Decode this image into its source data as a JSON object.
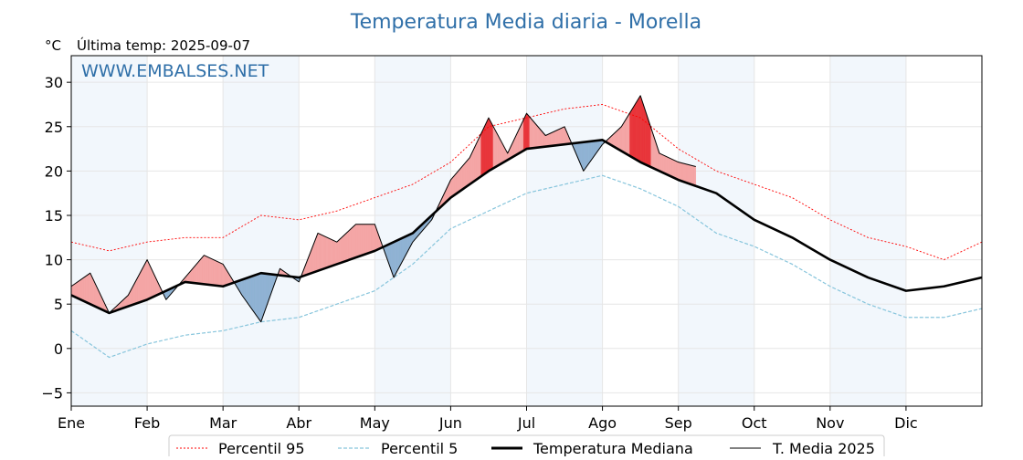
{
  "title": "Temperatura Media diaria - Morella",
  "unit_label": "°C",
  "last_temp_label": "Última temp: 2025-09-07",
  "watermark": "WWW.EMBALSES.NET",
  "colors": {
    "title": "#2f6fa8",
    "p95": "#ff0000",
    "p5": "#87c5dc",
    "median": "#000000",
    "current": "#000000",
    "above_fill": "#f4a5a5",
    "above_strong": "#e8353a",
    "below_fill": "#8fb2d3",
    "below_strong": "#2e6aa1",
    "month_band": "#f2f7fc"
  },
  "chart_data": {
    "type": "line",
    "title": "Temperatura Media diaria - Morella",
    "ylabel": "°C",
    "xlabel": "",
    "ylim": [
      -6.5,
      33
    ],
    "yticks": [
      -5,
      0,
      5,
      10,
      15,
      20,
      25,
      30
    ],
    "x_month_ticks": [
      "Ene",
      "Feb",
      "Mar",
      "Abr",
      "May",
      "Jun",
      "Jul",
      "Ago",
      "Sep",
      "Oct",
      "Nov",
      "Dic"
    ],
    "grid": true,
    "legend_position": "bottom",
    "series": [
      {
        "name": "Percentil 95",
        "x_month": [
          0,
          0.5,
          1,
          1.5,
          2,
          2.5,
          3,
          3.5,
          4,
          4.5,
          5,
          5.5,
          6,
          6.5,
          7,
          7.5,
          8,
          8.5,
          9,
          9.5,
          10,
          10.5,
          11,
          11.5,
          12
        ],
        "values": [
          12,
          11,
          12,
          12.5,
          12.5,
          15,
          14.5,
          15.5,
          17,
          18.5,
          21,
          25,
          26,
          27,
          27.5,
          26,
          22.5,
          20,
          18.5,
          17,
          14.5,
          12.5,
          11.5,
          10,
          12
        ]
      },
      {
        "name": "Percentil 5",
        "x_month": [
          0,
          0.5,
          1,
          1.5,
          2,
          2.5,
          3,
          3.5,
          4,
          4.5,
          5,
          5.5,
          6,
          6.5,
          7,
          7.5,
          8,
          8.5,
          9,
          9.5,
          10,
          10.5,
          11,
          11.5,
          12
        ],
        "values": [
          2,
          -1,
          0.5,
          1.5,
          2,
          3,
          3.5,
          5,
          6.5,
          9.5,
          13.5,
          15.5,
          17.5,
          18.5,
          19.5,
          18,
          16,
          13,
          11.5,
          9.5,
          7,
          5,
          3.5,
          3.5,
          4.5
        ]
      },
      {
        "name": "Temperatura Mediana",
        "x_month": [
          0,
          0.5,
          1,
          1.5,
          2,
          2.5,
          3,
          3.5,
          4,
          4.5,
          5,
          5.5,
          6,
          6.5,
          7,
          7.5,
          8,
          8.5,
          9,
          9.5,
          10,
          10.5,
          11,
          11.5,
          12
        ],
        "values": [
          6,
          4,
          5.5,
          7.5,
          7,
          8.5,
          8,
          9.5,
          11,
          13,
          17,
          20,
          22.5,
          23,
          23.5,
          21,
          19,
          17.5,
          14.5,
          12.5,
          10,
          8,
          6.5,
          7,
          8
        ]
      },
      {
        "name": "T. Media 2025",
        "x_month": [
          0,
          0.25,
          0.5,
          0.75,
          1,
          1.25,
          1.5,
          1.75,
          2,
          2.25,
          2.5,
          2.75,
          3,
          3.25,
          3.5,
          3.75,
          4,
          4.25,
          4.5,
          4.75,
          5,
          5.25,
          5.5,
          5.75,
          6,
          6.25,
          6.5,
          6.75,
          7,
          7.25,
          7.5,
          7.75,
          8,
          8.23
        ],
        "values": [
          7,
          8.5,
          4,
          6,
          10,
          5.5,
          8,
          10.5,
          9.5,
          6,
          3,
          9,
          7.5,
          13,
          12,
          14,
          14,
          8,
          12,
          14.5,
          19,
          21.5,
          26,
          22,
          26.5,
          24,
          25,
          20,
          23,
          25,
          28.5,
          22,
          21,
          20.5
        ]
      }
    ]
  },
  "legend": [
    {
      "label": "Percentil 95",
      "style": "p95"
    },
    {
      "label": "Percentil 5",
      "style": "p5"
    },
    {
      "label": "Temperatura Mediana",
      "style": "median"
    },
    {
      "label": "T. Media 2025",
      "style": "current"
    }
  ]
}
